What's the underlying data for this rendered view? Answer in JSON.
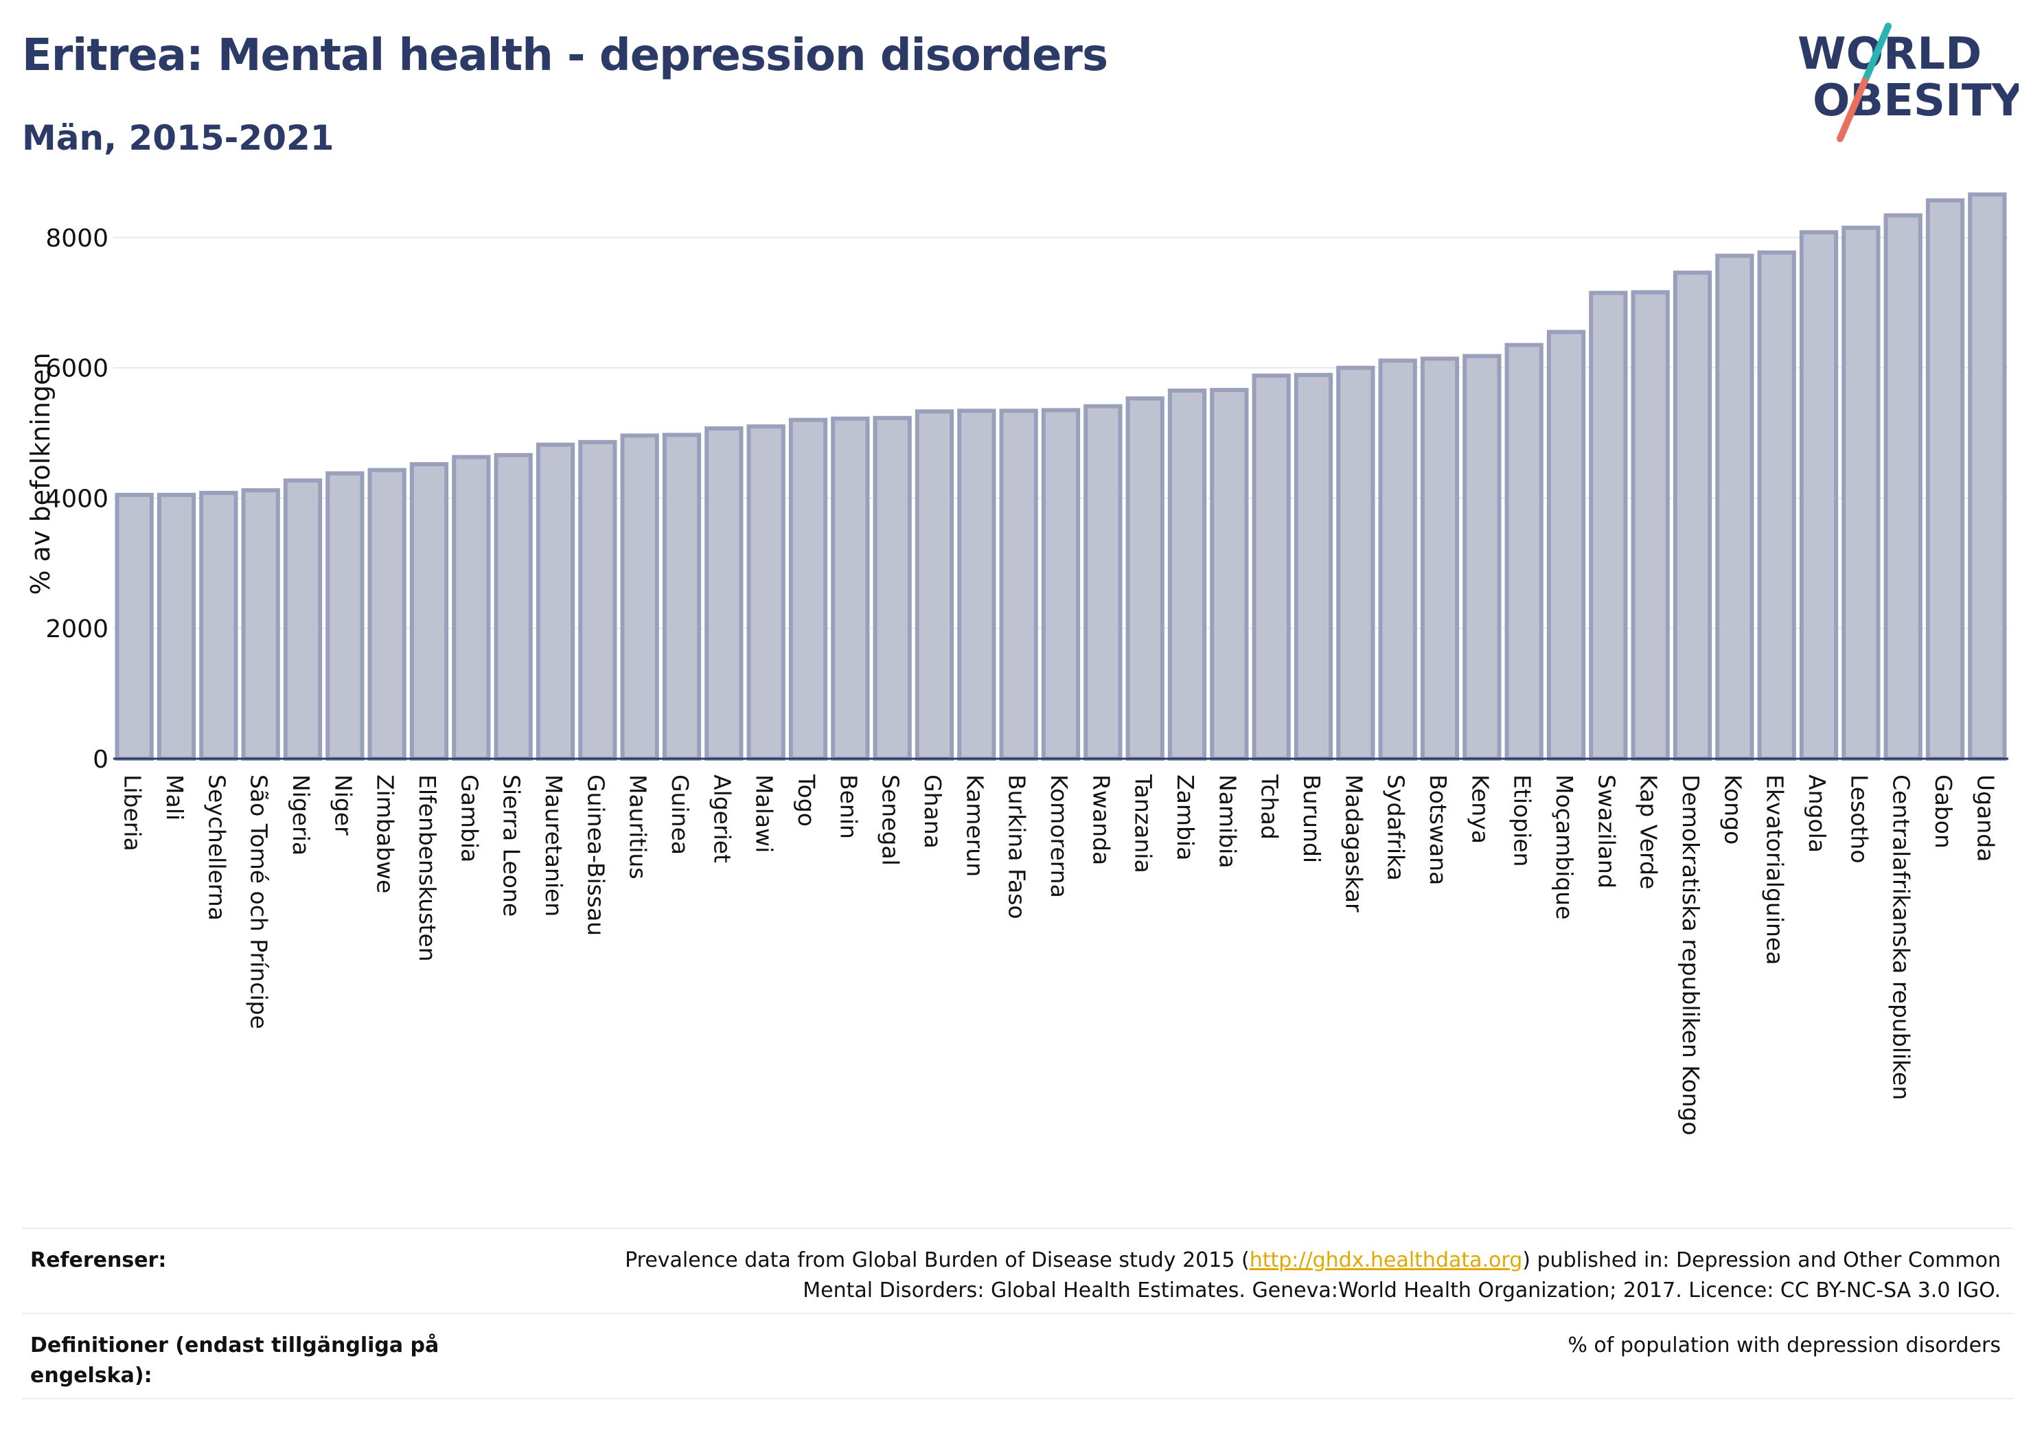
{
  "header": {
    "title": "Eritrea: Mental health - depression disorders",
    "subtitle": "Män, 2015-2021"
  },
  "logo": {
    "line1": "WORLD",
    "line2": "OBESITY"
  },
  "colors": {
    "title": "#2b3a67",
    "bar_fill": "#bfc3d1",
    "bar_stroke": "#9aa0bb",
    "logo_teal": "#2ab3b1",
    "logo_coral": "#e8705f",
    "link": "#e0a800"
  },
  "chart_data": {
    "type": "bar",
    "ylabel": "% av befolkningen",
    "ylim": [
      0,
      8800
    ],
    "yticks": [
      0,
      2000,
      4000,
      6000,
      8000
    ],
    "grid": true,
    "categories": [
      "Liberia",
      "Mali",
      "Seychellerna",
      "São Tomé och Príncipe",
      "Nigeria",
      "Niger",
      "Zimbabwe",
      "Elfenbenskusten",
      "Gambia",
      "Sierra Leone",
      "Mauretanien",
      "Guinea-Bissau",
      "Mauritius",
      "Guinea",
      "Algeriet",
      "Malawi",
      "Togo",
      "Benin",
      "Senegal",
      "Ghana",
      "Kamerun",
      "Burkina Faso",
      "Komorerna",
      "Rwanda",
      "Tanzania",
      "Zambia",
      "Namibia",
      "Tchad",
      "Burundi",
      "Madagaskar",
      "Sydafrika",
      "Botswana",
      "Kenya",
      "Etiopien",
      "Moçambique",
      "Swaziland",
      "Kap Verde",
      "Demokratiska republiken Kongo",
      "Kongo",
      "Ekvatorialguinea",
      "Angola",
      "Lesotho",
      "Centralafrikanska republiken",
      "Gabon",
      "Uganda"
    ],
    "values": [
      4050,
      4050,
      4080,
      4120,
      4270,
      4380,
      4430,
      4520,
      4630,
      4660,
      4820,
      4860,
      4960,
      4970,
      5070,
      5100,
      5200,
      5220,
      5230,
      5330,
      5340,
      5340,
      5350,
      5410,
      5530,
      5650,
      5660,
      5880,
      5890,
      6000,
      6110,
      6140,
      6180,
      6350,
      6550,
      7150,
      7160,
      7460,
      7720,
      7770,
      8080,
      8150,
      8340,
      8570,
      8660
    ]
  },
  "footer": {
    "references_label": "Referenser:",
    "references_text_1": "Prevalence data from Global Burden of Disease study 2015 (",
    "references_link": "http://ghdx.healthdata.org",
    "references_text_2": ") published in: Depression and Other Common",
    "references_text_3": "Mental Disorders: Global Health Estimates. Geneva:World Health Organization; 2017. Licence: CC BY-NC-SA 3.0 IGO.",
    "definitions_label": "Definitioner (endast tillgängliga på engelska):",
    "definitions_text": "% of population with depression disorders"
  }
}
